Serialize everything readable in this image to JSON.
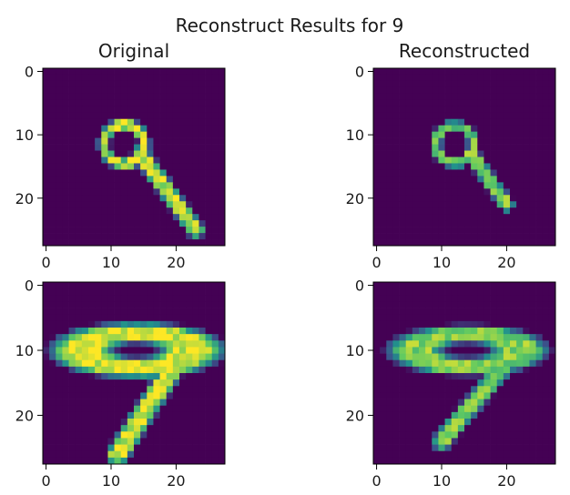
{
  "figure": {
    "title": "Reconstruct Results for 9"
  },
  "chart_data": [
    {
      "type": "heatmap",
      "title": "Original",
      "colormap": "viridis",
      "grid": false,
      "xlim": [
        0,
        27
      ],
      "ylim": [
        27,
        0
      ],
      "xticks": [
        0,
        10,
        20
      ],
      "yticks": [
        0,
        10,
        20
      ],
      "strokes": [
        {
          "kind": "ring",
          "center": [
            12,
            11.5
          ],
          "radii": [
            2.6,
            3.6
          ],
          "value": 0.95
        },
        {
          "kind": "line",
          "from": [
            14.5,
            13
          ],
          "to": [
            23,
            25
          ],
          "width": 1.2,
          "value": 0.9
        }
      ]
    },
    {
      "type": "heatmap",
      "title": "Reconstructed",
      "colormap": "viridis",
      "grid": false,
      "xlim": [
        0,
        27
      ],
      "ylim": [
        27,
        0
      ],
      "xticks": [
        0,
        10,
        20
      ],
      "yticks": [
        0,
        10,
        20
      ],
      "strokes": [
        {
          "kind": "ring",
          "center": [
            12,
            11.5
          ],
          "radii": [
            2.4,
            3.4
          ],
          "value": 0.75
        },
        {
          "kind": "line",
          "from": [
            14.5,
            13
          ],
          "to": [
            20,
            21
          ],
          "width": 1.0,
          "value": 0.8
        }
      ]
    },
    {
      "type": "heatmap",
      "title": "",
      "colormap": "viridis",
      "grid": false,
      "xlim": [
        0,
        27
      ],
      "ylim": [
        27,
        0
      ],
      "xticks": [
        0,
        10,
        20
      ],
      "yticks": [
        0,
        10,
        20
      ],
      "strokes": [
        {
          "kind": "ellipse",
          "center": [
            14,
            10
          ],
          "radii": [
            8.5,
            2.7
          ],
          "thickness": 1.5,
          "value": 0.95
        },
        {
          "kind": "line",
          "from": [
            20,
            12
          ],
          "to": [
            11,
            26
          ],
          "width": 1.6,
          "value": 0.95
        }
      ]
    },
    {
      "type": "heatmap",
      "title": "",
      "colormap": "viridis",
      "grid": false,
      "xlim": [
        0,
        27
      ],
      "ylim": [
        27,
        0
      ],
      "xticks": [
        0,
        10,
        20
      ],
      "yticks": [
        0,
        10,
        20
      ],
      "strokes": [
        {
          "kind": "ellipse",
          "center": [
            14,
            10
          ],
          "radii": [
            8,
            2.5
          ],
          "thickness": 1.3,
          "value": 0.8
        },
        {
          "kind": "line",
          "from": [
            20,
            12
          ],
          "to": [
            10,
            24
          ],
          "width": 1.3,
          "value": 0.8
        }
      ]
    }
  ]
}
